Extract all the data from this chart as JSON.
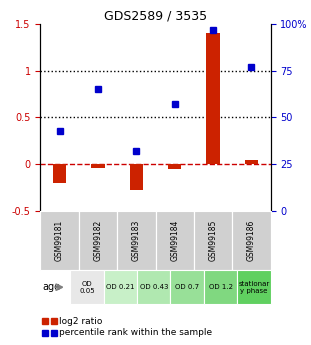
{
  "title": "GDS2589 / 3535",
  "samples": [
    "GSM99181",
    "GSM99182",
    "GSM99183",
    "GSM99184",
    "GSM99185",
    "GSM99186"
  ],
  "log2_ratio": [
    -0.2,
    -0.04,
    -0.28,
    -0.05,
    1.4,
    0.04
  ],
  "percentile_rank": [
    0.43,
    0.65,
    0.32,
    0.57,
    0.97,
    0.77
  ],
  "ylim_left": [
    -0.5,
    1.5
  ],
  "ylim_right": [
    0,
    100
  ],
  "yticks_left": [
    -0.5,
    0.0,
    0.5,
    1.0,
    1.5
  ],
  "yticks_right": [
    0,
    25,
    50,
    75,
    100
  ],
  "ytick_labels_left": [
    "-0.5",
    "0",
    "0.5",
    "1",
    "1.5"
  ],
  "ytick_labels_right": [
    "0",
    "25",
    "50",
    "75",
    "100%"
  ],
  "hlines": [
    0.0,
    0.5,
    1.0
  ],
  "hline_styles": [
    "dashed",
    "dotted",
    "dotted"
  ],
  "hline_colors": [
    "#cc0000",
    "#000000",
    "#000000"
  ],
  "bar_color": "#cc2200",
  "dot_color": "#0000cc",
  "age_labels": [
    "OD\n0.05",
    "OD 0.21",
    "OD 0.43",
    "OD 0.7",
    "OD 1.2",
    "stationar\ny phase"
  ],
  "age_bg_colors": [
    "#e8e8e8",
    "#c8f0c8",
    "#b0e8b0",
    "#98e098",
    "#80d880",
    "#60d060"
  ],
  "sample_bg_color": "#d0d0d0",
  "legend_log2_color": "#cc2200",
  "legend_pct_color": "#0000cc",
  "age_label": "age"
}
